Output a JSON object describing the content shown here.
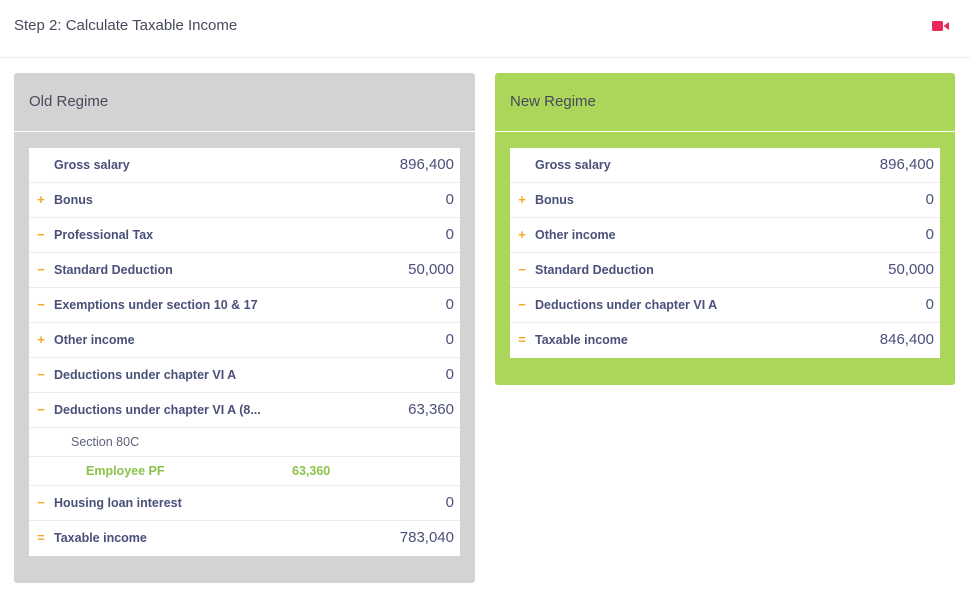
{
  "header": {
    "title": "Step 2: Calculate Taxable Income",
    "video_icon": "video-camera-icon",
    "video_color": "#e8285a"
  },
  "old_regime": {
    "title": "Old Regime",
    "rows": [
      {
        "sign": "",
        "label": "Gross salary",
        "value": "896,400"
      },
      {
        "sign": "+",
        "label": "Bonus",
        "value": "0"
      },
      {
        "sign": "−",
        "label": "Professional Tax",
        "value": "0"
      },
      {
        "sign": "−",
        "label": "Standard Deduction",
        "value": "50,000"
      },
      {
        "sign": "−",
        "label": "Exemptions under section 10 & 17",
        "value": "0"
      },
      {
        "sign": "+",
        "label": "Other income",
        "value": "0"
      },
      {
        "sign": "−",
        "label": "Deductions under chapter VI A",
        "value": "0"
      },
      {
        "sign": "−",
        "label": "Deductions under chapter VI A (8...",
        "value": "63,360"
      }
    ],
    "section": {
      "label": "Section 80C",
      "item_label": "Employee PF",
      "item_value": "63,360"
    },
    "rows_after": [
      {
        "sign": "−",
        "label": "Housing loan interest",
        "value": "0"
      },
      {
        "sign": "=",
        "label": "Taxable income",
        "value": "783,040"
      }
    ]
  },
  "new_regime": {
    "title": "New Regime",
    "rows": [
      {
        "sign": "",
        "label": "Gross salary",
        "value": "896,400"
      },
      {
        "sign": "+",
        "label": "Bonus",
        "value": "0"
      },
      {
        "sign": "+",
        "label": "Other income",
        "value": "0"
      },
      {
        "sign": "−",
        "label": "Standard Deduction",
        "value": "50,000"
      },
      {
        "sign": "−",
        "label": "Deductions under chapter VI A",
        "value": "0"
      },
      {
        "sign": "=",
        "label": "Taxable income",
        "value": "846,400"
      }
    ]
  },
  "colors": {
    "old_bg": "#d3d3d3",
    "new_bg": "#acd65a",
    "sign": "#f5a623",
    "accent_green": "#8bc34a"
  }
}
